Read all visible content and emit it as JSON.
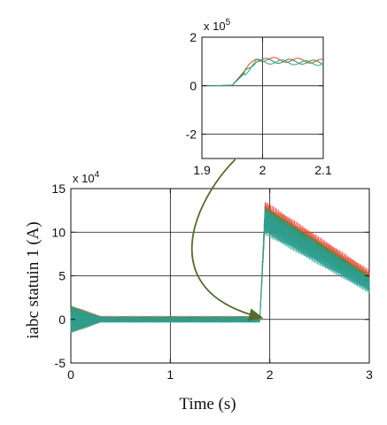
{
  "chart_data": [
    {
      "id": "main",
      "type": "line",
      "xlabel": "Time (s)",
      "ylabel": "iabc statuin 1 (A)",
      "xlim": [
        0,
        3
      ],
      "ylim": [
        -5,
        15
      ],
      "y_multiplier_label": {
        "base": "x 10",
        "exp": "4"
      },
      "x_ticks": [
        "0",
        "1",
        "2",
        "3"
      ],
      "y_ticks": [
        "-5",
        "0",
        "5",
        "10",
        "15"
      ],
      "x_tick_values": [
        0,
        1,
        2,
        3
      ],
      "y_tick_values": [
        -5,
        0,
        5,
        10,
        15
      ],
      "grid": true,
      "series": [
        {
          "color": "#e8442f",
          "values_description_points": [
            [
              0,
              0.0
            ],
            [
              0.3,
              0.0
            ],
            [
              1.9,
              0.0
            ],
            [
              1.95,
              12.5
            ],
            [
              3,
              4.5
            ]
          ]
        },
        {
          "color": "#2f8f3a",
          "values_description_points": [
            [
              0,
              0.0
            ],
            [
              0.3,
              0.0
            ],
            [
              1.9,
              0.0
            ],
            [
              1.95,
              11.5
            ],
            [
              3,
              4.0
            ]
          ]
        },
        {
          "color": "#2aa09a",
          "values_description_points": [
            [
              0,
              0.0
            ],
            [
              0.3,
              0.0
            ],
            [
              1.9,
              0.0
            ],
            [
              1.95,
              11.0
            ],
            [
              3,
              3.8
            ]
          ]
        }
      ],
      "segments": [
        {
          "x_start": 0,
          "x_end": 0.3,
          "center": 0.0,
          "amplitude_start": 1.6,
          "amplitude_end": 0.35
        },
        {
          "x_start": 0.3,
          "x_end": 1.9,
          "center": 0.0,
          "amplitude_start": 0.35,
          "amplitude_end": 0.35
        },
        {
          "x_start": 1.9,
          "x_end": 1.95,
          "center_start": 0.0,
          "center_end": 11.5,
          "amplitude_start": 0.35,
          "amplitude_end": 1.5
        },
        {
          "x_start": 1.95,
          "x_end": 3.0,
          "center_start": 11.5,
          "center_end": 4.2,
          "amplitude_start": 1.5,
          "amplitude_end": 0.9
        }
      ]
    },
    {
      "id": "inset",
      "type": "line",
      "xlim": [
        1.9,
        2.1
      ],
      "ylim": [
        -3,
        2
      ],
      "y_multiplier_label": {
        "base": "x 10",
        "exp": "5"
      },
      "x_ticks": [
        "1.9",
        "2",
        "2.1"
      ],
      "y_ticks": [
        "-2",
        "0",
        "2"
      ],
      "x_tick_values": [
        1.9,
        2.0,
        2.1
      ],
      "y_tick_values": [
        -2,
        0,
        2
      ],
      "grid": true,
      "series": [
        {
          "color": "#e8442f",
          "values": [
            [
              1.9,
              0.0
            ],
            [
              1.95,
              0.02
            ],
            [
              1.97,
              0.6
            ],
            [
              1.99,
              1.1
            ],
            [
              2.1,
              1.0
            ]
          ]
        },
        {
          "color": "#2f8f3a",
          "values": [
            [
              1.9,
              0.0
            ],
            [
              1.95,
              0.02
            ],
            [
              1.97,
              0.55
            ],
            [
              1.99,
              1.05
            ],
            [
              2.1,
              0.95
            ]
          ]
        },
        {
          "color": "#2aa09a",
          "values": [
            [
              1.9,
              0.0
            ],
            [
              1.95,
              0.02
            ],
            [
              1.97,
              0.5
            ],
            [
              1.99,
              1.0
            ],
            [
              2.1,
              0.92
            ]
          ]
        }
      ]
    }
  ],
  "annotation": {
    "type": "curved-arrow",
    "color": "#556b2f",
    "from": "inset",
    "to": "main"
  }
}
